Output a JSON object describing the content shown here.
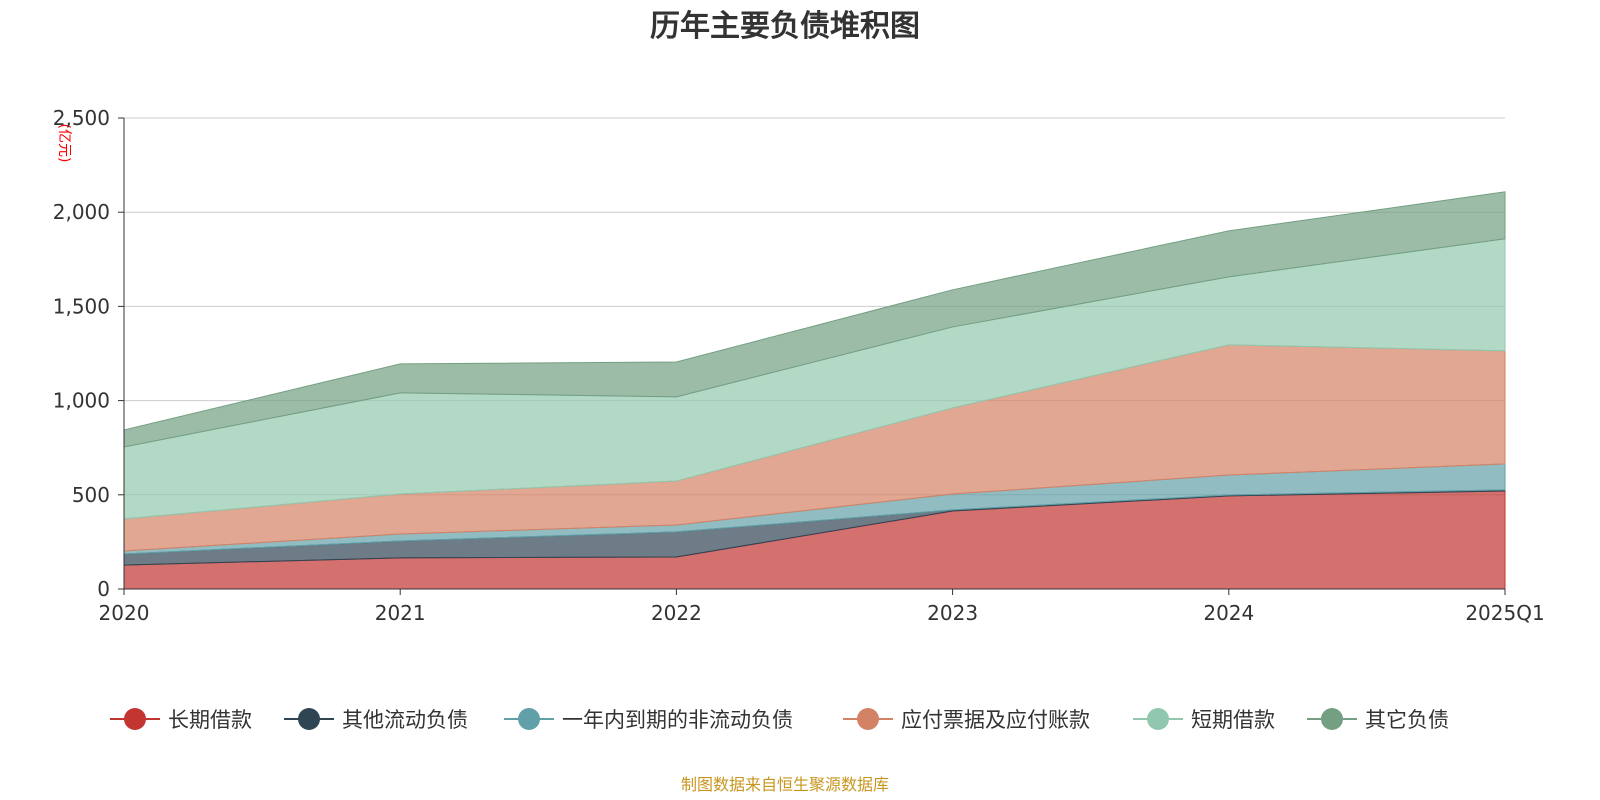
{
  "chart_data": {
    "type": "area",
    "stacked": true,
    "title": "历年主要负债堆积图",
    "ylabel": "(亿元)",
    "xlabel": "",
    "ylim": [
      0,
      2500
    ],
    "yticks": [
      0,
      500,
      1000,
      1500,
      2000,
      2500
    ],
    "ytick_labels": [
      "0",
      "500",
      "1,000",
      "1,500",
      "2,000",
      "2,500"
    ],
    "grid": true,
    "legend_position": "bottom",
    "categories": [
      "2020",
      "2021",
      "2022",
      "2023",
      "2024",
      "2025Q1"
    ],
    "series": [
      {
        "name": "长期借款",
        "color": "#c23531",
        "values": [
          127,
          165,
          170,
          414,
          494,
          520
        ]
      },
      {
        "name": "其他流动负债",
        "color": "#2f4554",
        "values": [
          59,
          90,
          133,
          6,
          5,
          6
        ]
      },
      {
        "name": "一年内到期的非流动负债",
        "color": "#61a0a8",
        "values": [
          16,
          37,
          37,
          84,
          106,
          138
        ]
      },
      {
        "name": "应付票据及应付账款",
        "color": "#d48265",
        "values": [
          170,
          212,
          233,
          457,
          691,
          600
        ]
      },
      {
        "name": "短期借款",
        "color": "#91c7ae",
        "values": [
          382,
          537,
          447,
          430,
          361,
          595
        ]
      },
      {
        "name": "其它负债",
        "color": "#749f83",
        "values": [
          90,
          154,
          185,
          197,
          244,
          249
        ]
      }
    ]
  },
  "footer": "制图数据来自恒生聚源数据库"
}
